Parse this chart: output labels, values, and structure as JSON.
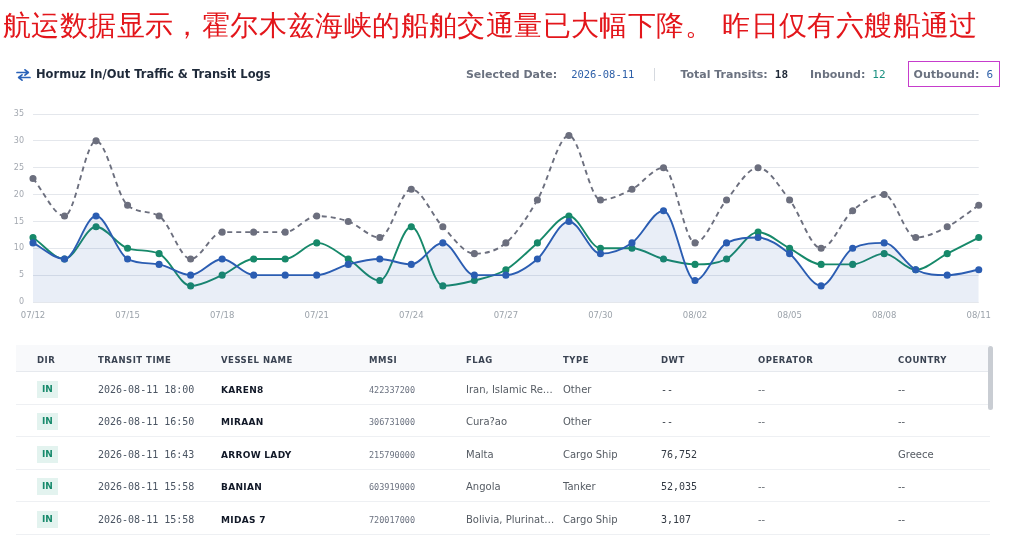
{
  "chart_data": [
    {
      "type": "line",
      "title": "航运数据显示，霍尔木兹海峡的船舶交通量已大幅下降。 昨日仅有六艘船通过",
      "subtitle": "Hormuz In/Out Traffic & Transit Logs",
      "annotations": [
        "Selected Date:",
        "2026-08-11",
        "Total Transits:",
        "18",
        "Inbound:",
        "12",
        "Outbound:",
        "6"
      ],
      "categories": [
        "07/12",
        null,
        null,
        "07/15",
        null,
        null,
        "07/18",
        null,
        null,
        "07/21",
        null,
        null,
        "07/24",
        null,
        null,
        "07/27",
        null,
        null,
        "07/30",
        null,
        null,
        "08/02",
        null,
        null,
        "08/05",
        null,
        null,
        "08/08",
        null,
        null,
        "08/11"
      ],
      "series": [
        {
          "type": "area",
          "color": "#2b5db2",
          "values": [
            11,
            8,
            16,
            8,
            7,
            5,
            8,
            5,
            5,
            5,
            7,
            8,
            7,
            11,
            5,
            5,
            8,
            15,
            9,
            11,
            17,
            4,
            11,
            12,
            9,
            3,
            10,
            11,
            6,
            5,
            6
          ]
        },
        {
          "color": "#17896a",
          "values": [
            12,
            8,
            14,
            10,
            9,
            3,
            5,
            8,
            8,
            11,
            8,
            4,
            14,
            3,
            4,
            6,
            11,
            16,
            10,
            10,
            8,
            7,
            8,
            13,
            10,
            7,
            7,
            9,
            6,
            9,
            12
          ]
        },
        {
          "color": "#6c6f7e",
          "line_style": "dashed",
          "values": [
            23,
            16,
            30,
            18,
            16,
            8,
            13,
            13,
            13,
            16,
            15,
            12,
            21,
            14,
            9,
            11,
            19,
            31,
            19,
            21,
            25,
            11,
            19,
            25,
            19,
            10,
            17,
            20,
            12,
            14,
            18
          ]
        }
      ],
      "ylim": [
        0,
        35
      ],
      "yticks": [
        0,
        5,
        10,
        15,
        20,
        25,
        30,
        35
      ],
      "grid": "y",
      "marker": "circle"
    },
    {
      "type": "other",
      "categories": [
        "DIR",
        "TRANSIT TIME",
        "VESSEL NAME",
        "MMSI",
        "FLAG",
        "TYPE",
        "DWT",
        "OPERATOR",
        "COUNTRY"
      ],
      "cell_labels": [
        [
          "IN",
          "2026-08-11 18:00",
          "KAREN8",
          "422337200",
          "Iran, Islamic Re…",
          "Other",
          "--",
          "--",
          "--"
        ],
        [
          "IN",
          "2026-08-11 16:50",
          "MIRAAN",
          "306731000",
          "Cura?ao",
          "Other",
          "--",
          "--",
          "--"
        ],
        [
          "IN",
          "2026-08-11 16:43",
          "ARROW LADY",
          "215790000",
          "Malta",
          "Cargo Ship",
          "76,752",
          null,
          "Greece"
        ],
        [
          "IN",
          "2026-08-11 15:58",
          "BANIAN",
          "603919000",
          "Angola",
          "Tanker",
          "52,035",
          "--",
          "--"
        ],
        [
          "IN",
          "2026-08-11 15:58",
          "MIDAS 7",
          "720017000",
          "Bolivia, Plurinat…",
          "Cargo Ship",
          "3,107",
          "--",
          "--"
        ]
      ]
    }
  ]
}
